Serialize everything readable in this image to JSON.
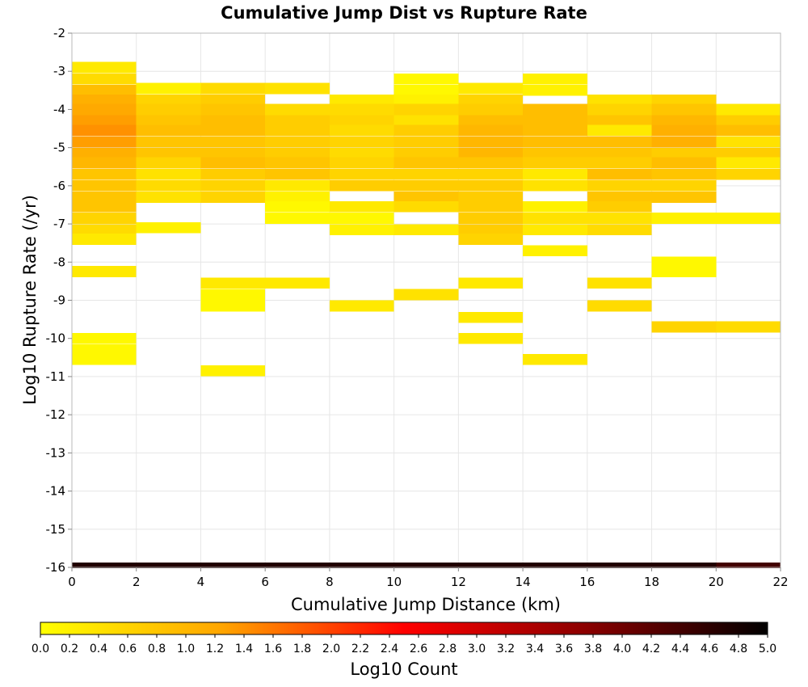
{
  "chart_data": {
    "type": "heatmap",
    "title": "Cumulative Jump Dist vs Rupture Rate",
    "xlabel": "Cumulative Jump Distance (km)",
    "ylabel": "Log10 Rupture Rate (/yr)",
    "xlim": [
      0,
      22
    ],
    "ylim": [
      -16,
      -2
    ],
    "x_ticks": [
      "0",
      "2",
      "4",
      "6",
      "8",
      "10",
      "12",
      "14",
      "16",
      "18",
      "20",
      "22"
    ],
    "y_ticks": [
      "-2",
      "-3",
      "-4",
      "-5",
      "-6",
      "-7",
      "-8",
      "-9",
      "-10",
      "-11",
      "-12",
      "-13",
      "-14",
      "-15",
      "-16"
    ],
    "x_bin_width": 2,
    "y_bin_height": 0.29,
    "grid": true,
    "colorbar": {
      "label": "Log10 Count",
      "range": [
        0,
        5
      ],
      "ticks": [
        "0.0",
        "0.2",
        "0.4",
        "0.6",
        "0.8",
        "1.0",
        "1.2",
        "1.4",
        "1.6",
        "1.8",
        "2.0",
        "2.2",
        "2.4",
        "2.6",
        "2.8",
        "3.0",
        "3.2",
        "3.4",
        "3.6",
        "3.8",
        "4.0",
        "4.2",
        "4.4",
        "4.6",
        "4.8",
        "5.0"
      ],
      "colors": [
        "#ffff00",
        "#ffa500",
        "#ff0000",
        "#8b0000",
        "#000000"
      ]
    },
    "cells": [
      [
        0,
        -2.9,
        0.3
      ],
      [
        0,
        -3.2,
        0.5
      ],
      [
        0,
        -3.5,
        0.9
      ],
      [
        0,
        -3.75,
        1.1
      ],
      [
        0,
        -4.0,
        1.2
      ],
      [
        0,
        -4.3,
        1.3
      ],
      [
        0,
        -4.55,
        1.4
      ],
      [
        0,
        -4.85,
        1.3
      ],
      [
        0,
        -5.15,
        1.1
      ],
      [
        0,
        -5.4,
        1.0
      ],
      [
        0,
        -5.7,
        0.8
      ],
      [
        0,
        -6.0,
        0.8
      ],
      [
        0,
        -6.3,
        0.8
      ],
      [
        0,
        -6.55,
        0.8
      ],
      [
        0,
        -6.85,
        0.6
      ],
      [
        0,
        -7.15,
        0.5
      ],
      [
        0,
        -7.4,
        0.3
      ],
      [
        0,
        -8.25,
        0.3
      ],
      [
        0,
        -10.0,
        0.1
      ],
      [
        0,
        -10.3,
        0.1
      ],
      [
        0,
        -10.55,
        0.1
      ],
      [
        2,
        -3.45,
        0.2
      ],
      [
        2,
        -3.75,
        0.6
      ],
      [
        2,
        -4.0,
        0.7
      ],
      [
        2,
        -4.3,
        0.8
      ],
      [
        2,
        -4.55,
        0.9
      ],
      [
        2,
        -4.85,
        0.8
      ],
      [
        2,
        -5.15,
        0.8
      ],
      [
        2,
        -5.4,
        0.6
      ],
      [
        2,
        -5.7,
        0.4
      ],
      [
        2,
        -6.0,
        0.5
      ],
      [
        2,
        -6.3,
        0.4
      ],
      [
        2,
        -7.1,
        0.2
      ],
      [
        4,
        -3.45,
        0.5
      ],
      [
        4,
        -3.75,
        0.7
      ],
      [
        4,
        -4.0,
        0.8
      ],
      [
        4,
        -4.3,
        0.9
      ],
      [
        4,
        -4.55,
        0.9
      ],
      [
        4,
        -4.85,
        0.8
      ],
      [
        4,
        -5.15,
        0.8
      ],
      [
        4,
        -5.4,
        0.9
      ],
      [
        4,
        -5.7,
        0.7
      ],
      [
        4,
        -6.0,
        0.6
      ],
      [
        4,
        -6.3,
        0.6
      ],
      [
        4,
        -8.55,
        0.3
      ],
      [
        4,
        -8.85,
        0.1
      ],
      [
        4,
        -9.15,
        0.1
      ],
      [
        4,
        -10.85,
        0.2
      ],
      [
        6,
        -3.45,
        0.4
      ],
      [
        6,
        -4.0,
        0.5
      ],
      [
        6,
        -4.3,
        0.7
      ],
      [
        6,
        -4.55,
        0.7
      ],
      [
        6,
        -4.85,
        0.7
      ],
      [
        6,
        -5.15,
        0.7
      ],
      [
        6,
        -5.4,
        0.8
      ],
      [
        6,
        -5.7,
        0.8
      ],
      [
        6,
        -6.0,
        0.3
      ],
      [
        6,
        -6.3,
        0.2
      ],
      [
        6,
        -6.55,
        0.1
      ],
      [
        6,
        -6.85,
        0.1
      ],
      [
        6,
        -8.55,
        0.3
      ],
      [
        8,
        -3.75,
        0.3
      ],
      [
        8,
        -4.0,
        0.5
      ],
      [
        8,
        -4.3,
        0.6
      ],
      [
        8,
        -4.55,
        0.5
      ],
      [
        8,
        -4.85,
        0.6
      ],
      [
        8,
        -5.15,
        0.5
      ],
      [
        8,
        -5.4,
        0.6
      ],
      [
        8,
        -5.7,
        0.6
      ],
      [
        8,
        -6.0,
        0.7
      ],
      [
        8,
        -6.55,
        0.3
      ],
      [
        8,
        -6.85,
        0.1
      ],
      [
        8,
        -7.15,
        0.2
      ],
      [
        8,
        -9.15,
        0.3
      ],
      [
        10,
        -3.2,
        0.1
      ],
      [
        10,
        -3.5,
        0.1
      ],
      [
        10,
        -3.75,
        0.2
      ],
      [
        10,
        -4.0,
        0.6
      ],
      [
        10,
        -4.3,
        0.4
      ],
      [
        10,
        -4.55,
        0.7
      ],
      [
        10,
        -4.85,
        0.7
      ],
      [
        10,
        -5.15,
        0.7
      ],
      [
        10,
        -5.4,
        0.8
      ],
      [
        10,
        -5.7,
        0.6
      ],
      [
        10,
        -6.0,
        0.7
      ],
      [
        10,
        -6.3,
        0.8
      ],
      [
        10,
        -6.55,
        0.5
      ],
      [
        10,
        -7.15,
        0.3
      ],
      [
        10,
        -8.85,
        0.4
      ],
      [
        12,
        -3.45,
        0.3
      ],
      [
        12,
        -3.75,
        0.6
      ],
      [
        12,
        -4.0,
        0.7
      ],
      [
        12,
        -4.3,
        0.9
      ],
      [
        12,
        -4.55,
        1.0
      ],
      [
        12,
        -4.85,
        1.0
      ],
      [
        12,
        -5.15,
        1.0
      ],
      [
        12,
        -5.4,
        0.8
      ],
      [
        12,
        -5.7,
        0.6
      ],
      [
        12,
        -6.0,
        0.7
      ],
      [
        12,
        -6.3,
        0.7
      ],
      [
        12,
        -6.55,
        0.7
      ],
      [
        12,
        -6.85,
        0.7
      ],
      [
        12,
        -7.15,
        0.7
      ],
      [
        12,
        -7.4,
        0.6
      ],
      [
        12,
        -8.55,
        0.3
      ],
      [
        12,
        -9.45,
        0.3
      ],
      [
        12,
        -10.0,
        0.3
      ],
      [
        14,
        -3.2,
        0.2
      ],
      [
        14,
        -3.5,
        0.2
      ],
      [
        14,
        -4.0,
        0.9
      ],
      [
        14,
        -4.3,
        0.9
      ],
      [
        14,
        -4.55,
        0.9
      ],
      [
        14,
        -4.85,
        0.9
      ],
      [
        14,
        -5.15,
        0.8
      ],
      [
        14,
        -5.4,
        0.7
      ],
      [
        14,
        -5.7,
        0.3
      ],
      [
        14,
        -6.0,
        0.4
      ],
      [
        14,
        -6.55,
        0.2
      ],
      [
        14,
        -6.85,
        0.4
      ],
      [
        14,
        -7.15,
        0.3
      ],
      [
        14,
        -7.7,
        0.2
      ],
      [
        14,
        -10.55,
        0.3
      ],
      [
        16,
        -3.75,
        0.4
      ],
      [
        16,
        -4.0,
        0.6
      ],
      [
        16,
        -4.3,
        0.8
      ],
      [
        16,
        -4.55,
        0.3
      ],
      [
        16,
        -4.85,
        0.9
      ],
      [
        16,
        -5.15,
        0.8
      ],
      [
        16,
        -5.4,
        0.7
      ],
      [
        16,
        -5.7,
        0.9
      ],
      [
        16,
        -6.0,
        0.6
      ],
      [
        16,
        -6.3,
        0.8
      ],
      [
        16,
        -6.55,
        0.7
      ],
      [
        16,
        -6.85,
        0.4
      ],
      [
        16,
        -7.15,
        0.5
      ],
      [
        16,
        -8.55,
        0.4
      ],
      [
        16,
        -9.15,
        0.5
      ],
      [
        18,
        -3.75,
        0.6
      ],
      [
        18,
        -4.0,
        0.8
      ],
      [
        18,
        -4.3,
        1.0
      ],
      [
        18,
        -4.55,
        1.1
      ],
      [
        18,
        -4.85,
        1.1
      ],
      [
        18,
        -5.15,
        0.7
      ],
      [
        18,
        -5.4,
        0.9
      ],
      [
        18,
        -5.7,
        0.8
      ],
      [
        18,
        -6.0,
        0.6
      ],
      [
        18,
        -6.3,
        0.8
      ],
      [
        18,
        -6.85,
        0.2
      ],
      [
        18,
        -8.0,
        0.1
      ],
      [
        18,
        -8.25,
        0.1
      ],
      [
        18,
        -9.7,
        0.6
      ],
      [
        20,
        -4.0,
        0.3
      ],
      [
        20,
        -4.3,
        0.7
      ],
      [
        20,
        -4.55,
        0.9
      ],
      [
        20,
        -4.85,
        0.4
      ],
      [
        20,
        -5.15,
        0.7
      ],
      [
        20,
        -5.4,
        0.3
      ],
      [
        20,
        -5.7,
        0.6
      ],
      [
        20,
        -6.85,
        0.2
      ],
      [
        20,
        -9.7,
        0.5
      ]
    ],
    "bottom_row": {
      "y": -15.95,
      "height": 0.15,
      "values": [
        4.7,
        4.7,
        4.7,
        4.7,
        4.7,
        4.7,
        4.7,
        4.7,
        4.7,
        4.7,
        4.4
      ]
    }
  }
}
